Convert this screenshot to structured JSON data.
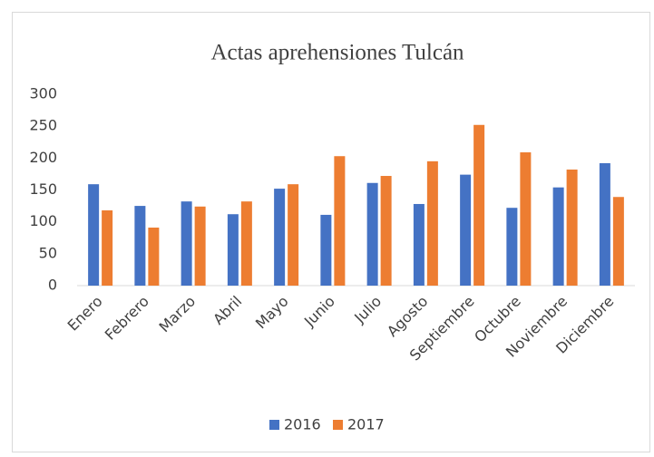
{
  "chart_data": {
    "type": "bar",
    "title": "Actas aprehensiones Tulcán",
    "categories": [
      "Enero",
      "Febrero",
      "Marzo",
      "Abril",
      "Mayo",
      "Junio",
      "Julio",
      "Agosto",
      "Septiembre",
      "Octubre",
      "Noviembre",
      "Diciembre"
    ],
    "series": [
      {
        "name": "2016",
        "color": "#4472c4",
        "values": [
          159,
          125,
          132,
          112,
          152,
          111,
          161,
          128,
          174,
          122,
          154,
          192
        ]
      },
      {
        "name": "2017",
        "color": "#ed7d31",
        "values": [
          118,
          91,
          124,
          132,
          159,
          203,
          172,
          195,
          252,
          209,
          182,
          139
        ]
      }
    ],
    "ylim": [
      0,
      300
    ],
    "yticks": [
      0,
      50,
      100,
      150,
      200,
      250,
      300
    ],
    "grid": false,
    "legend": "bottom"
  }
}
